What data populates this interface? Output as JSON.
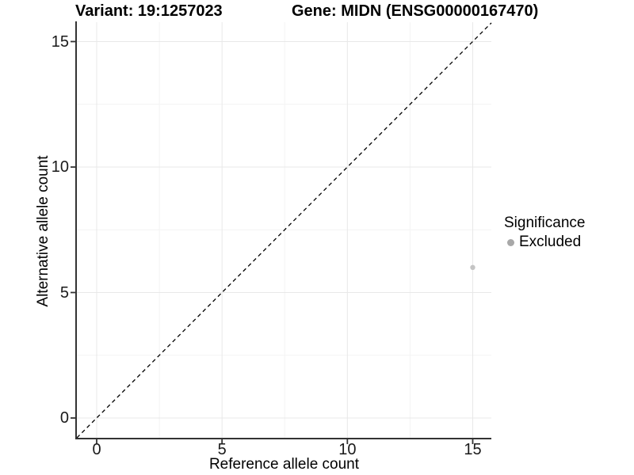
{
  "titles": {
    "variant": "Variant: 19:1257023",
    "gene": "Gene: MIDN (ENSG00000167470)"
  },
  "axes": {
    "x": {
      "label": "Reference allele count",
      "tick_labels": [
        "0",
        "5",
        "10",
        "15"
      ]
    },
    "y": {
      "label": "Alternative allele count",
      "tick_labels": [
        "0",
        "5",
        "10",
        "15"
      ]
    }
  },
  "legend": {
    "title": "Significance",
    "items": [
      {
        "label": "Excluded",
        "marker_color": "#a8a8a8"
      }
    ]
  },
  "chart_data": {
    "type": "scatter",
    "title": "Variant: 19:1257023",
    "subtitle": "Gene: MIDN (ENSG00000167470)",
    "xlabel": "Reference allele count",
    "ylabel": "Alternative allele count",
    "xlim": [
      -0.8,
      15.8
    ],
    "ylim": [
      -0.8,
      15.8
    ],
    "x_ticks": [
      0,
      5,
      10,
      15
    ],
    "y_ticks": [
      0,
      5,
      10,
      15
    ],
    "grid": {
      "major": [
        0,
        5,
        10,
        15
      ],
      "minor": [
        2.5,
        7.5,
        12.5
      ],
      "visible": true
    },
    "series": [
      {
        "name": "Excluded",
        "color": "#c4c4c4",
        "points": [
          {
            "x": 15,
            "y": 6
          }
        ]
      }
    ],
    "reference_line": {
      "kind": "identity y=x",
      "slope": 1,
      "intercept": 0,
      "linetype": "dashed",
      "color": "#000000"
    },
    "legend_position": "right",
    "legend_title": "Significance"
  },
  "colors": {
    "background": "#ffffff",
    "axis_line": "#333333",
    "tick_text": "#1a1a1a",
    "grid_major": "#e8e8e8",
    "grid_minor": "#f4f4f4",
    "point": "#c4c4c4",
    "legend_marker": "#a8a8a8",
    "reference_line": "#000000"
  }
}
